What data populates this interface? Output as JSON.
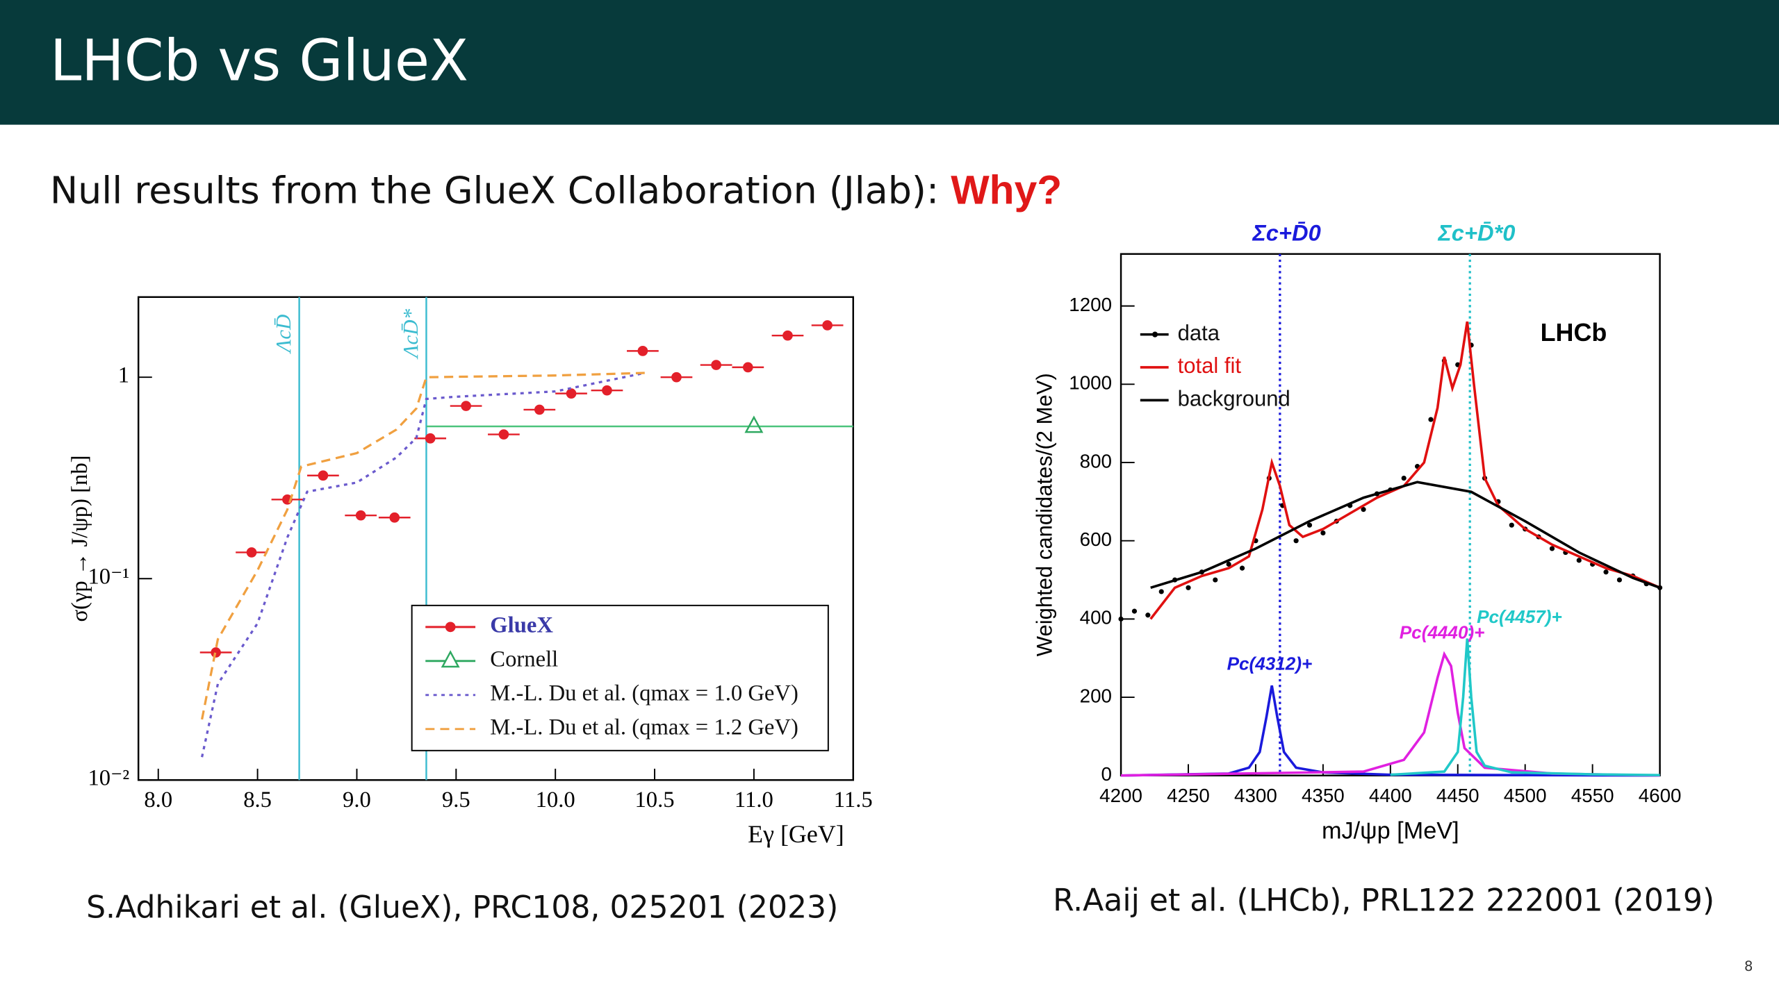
{
  "slide": {
    "title": "LHCb vs GlueX",
    "subtitle": "Null results from the GlueX Collaboration (Jlab): ",
    "subtitle_emphasis": "Why?",
    "caption_left": "S.Adhikari et al. (GlueX), PRC108, 025201 (2023)",
    "caption_right": "R.Aaij et al. (LHCb), PRL122 222001 (2019)",
    "page_number": "8"
  },
  "chart_data": [
    {
      "type": "scatter",
      "x_label": "Eγ [GeV]",
      "y_label": "σ(γp → J/ψp) [nb]",
      "ylog": true,
      "xlim": [
        7.9,
        11.5
      ],
      "ylim": [
        0.01,
        2.5
      ],
      "xticks": [
        {
          "value": 8,
          "label": "8.0"
        },
        8.5,
        {
          "value": 9,
          "label": "9.0"
        },
        9.5,
        {
          "value": 10,
          "label": "10.0"
        },
        10.5,
        {
          "value": 11,
          "label": "11.0"
        },
        11.5
      ],
      "yticks": [
        {
          "value": 0.01,
          "label": "10⁻²"
        },
        {
          "value": 0.1,
          "label": "10⁻¹"
        },
        1
      ],
      "legend": "lower right",
      "reference_lines": [
        {
          "axis": "x",
          "value": 8.71,
          "label": "ΛcD̄",
          "color": "#3cbcd0"
        },
        {
          "axis": "x",
          "value": 9.35,
          "label": "ΛcD̄*",
          "color": "#3cbcd0"
        },
        {
          "axis": "y",
          "value": 0.57,
          "from": 9.35,
          "color": "#4cc47c"
        }
      ],
      "series": [
        {
          "name": "GlueX",
          "color": "#e3202a",
          "style": "points",
          "x": [
            8.29,
            8.47,
            8.65,
            8.83,
            9.02,
            9.19,
            9.37,
            9.55,
            9.74,
            9.92,
            10.08,
            10.26,
            10.44,
            10.61,
            10.81,
            10.97,
            11.17,
            11.37
          ],
          "values": [
            0.043,
            0.135,
            0.247,
            0.325,
            0.206,
            0.201,
            0.497,
            0.72,
            0.52,
            0.69,
            0.83,
            0.86,
            1.35,
            1.0,
            1.15,
            1.12,
            1.61,
            1.81
          ]
        },
        {
          "name": "Cornell",
          "color": "#2ea860",
          "style": "triangle",
          "x": [
            11.0
          ],
          "values": [
            0.57
          ]
        },
        {
          "name": "M.-L. Du et al. (qmax = 1.0 GeV)",
          "color": "#6a5acd",
          "style": "dotted",
          "x": [
            8.22,
            8.3,
            8.5,
            8.65,
            8.75,
            9.0,
            9.2,
            9.3,
            9.35,
            9.5,
            10.0,
            10.45
          ],
          "values": [
            0.013,
            0.03,
            0.06,
            0.16,
            0.27,
            0.3,
            0.4,
            0.5,
            0.78,
            0.8,
            0.85,
            1.05
          ]
        },
        {
          "name": "M.-L. Du et al. (qmax = 1.2 GeV)",
          "color": "#f0a040",
          "style": "dashed",
          "x": [
            8.22,
            8.3,
            8.5,
            8.65,
            8.72,
            9.0,
            9.2,
            9.3,
            9.35,
            10.0,
            10.45
          ],
          "values": [
            0.02,
            0.05,
            0.11,
            0.22,
            0.36,
            0.42,
            0.55,
            0.7,
            1.0,
            1.02,
            1.05
          ]
        }
      ]
    },
    {
      "type": "line",
      "x_label": "mJ/ψp [MeV]",
      "y_label": "Weighted candidates/(2 MeV)",
      "annotation": "LHCb",
      "xlim": [
        4200,
        4600
      ],
      "ylim": [
        0,
        1333
      ],
      "xticks": [
        4200,
        4250,
        4300,
        4350,
        4400,
        4450,
        4500,
        4550,
        4600
      ],
      "yticks": [
        0,
        200,
        400,
        600,
        800,
        1000,
        1200
      ],
      "legend": "upper left",
      "reference_lines": [
        {
          "axis": "x",
          "value": 4318,
          "label": "Σc+D̄0",
          "color": "#1a1adc"
        },
        {
          "axis": "x",
          "value": 4459,
          "label": "Σc+D̄*0",
          "color": "#20c0c8"
        }
      ],
      "series": [
        {
          "name": "data",
          "color": "#000000",
          "style": "points",
          "in_legend": true,
          "x": [
            4200,
            4210,
            4220,
            4230,
            4240,
            4250,
            4260,
            4270,
            4280,
            4290,
            4300,
            4310,
            4320,
            4330,
            4340,
            4350,
            4360,
            4370,
            4380,
            4390,
            4400,
            4410,
            4420,
            4430,
            4440,
            4450,
            4460,
            4470,
            4480,
            4490,
            4500,
            4510,
            4520,
            4530,
            4540,
            4550,
            4560,
            4570,
            4580,
            4590,
            4600
          ],
          "values": [
            400,
            420,
            410,
            470,
            500,
            480,
            520,
            500,
            540,
            530,
            600,
            760,
            690,
            600,
            640,
            620,
            650,
            690,
            680,
            720,
            730,
            760,
            790,
            910,
            1060,
            1050,
            1100,
            760,
            700,
            640,
            630,
            610,
            580,
            570,
            550,
            540,
            520,
            500,
            510,
            490,
            480
          ]
        },
        {
          "name": "total fit",
          "color": "#e01010",
          "style": "line",
          "in_legend": true,
          "x": [
            4222,
            4240,
            4260,
            4280,
            4295,
            4305,
            4312,
            4318,
            4325,
            4335,
            4350,
            4370,
            4390,
            4410,
            4425,
            4435,
            4440,
            4446,
            4452,
            4457,
            4462,
            4470,
            4480,
            4500,
            4520,
            4540,
            4560,
            4580,
            4600
          ],
          "values": [
            400,
            480,
            510,
            530,
            560,
            680,
            800,
            740,
            640,
            610,
            630,
            670,
            710,
            740,
            800,
            940,
            1070,
            990,
            1050,
            1160,
            1000,
            760,
            690,
            630,
            590,
            560,
            530,
            510,
            480
          ]
        },
        {
          "name": "background",
          "color": "#000000",
          "style": "line",
          "in_legend": true,
          "x": [
            4222,
            4260,
            4300,
            4340,
            4380,
            4420,
            4460,
            4500,
            4540,
            4580,
            4600
          ],
          "values": [
            480,
            520,
            580,
            650,
            710,
            750,
            725,
            650,
            570,
            505,
            480
          ]
        },
        {
          "name": "Pc(4312)+",
          "color": "#1a1adc",
          "style": "line",
          "in_legend": false,
          "x": [
            4200,
            4280,
            4295,
            4303,
            4308,
            4312,
            4316,
            4321,
            4330,
            4350,
            4400,
            4600
          ],
          "values": [
            0,
            5,
            20,
            60,
            150,
            230,
            150,
            60,
            20,
            8,
            2,
            0
          ]
        },
        {
          "name": "Pc(4440)+",
          "color": "#e020e0",
          "style": "line",
          "in_legend": false,
          "x": [
            4200,
            4380,
            4410,
            4425,
            4435,
            4440,
            4445,
            4450,
            4455,
            4470,
            4520,
            4600
          ],
          "values": [
            0,
            10,
            40,
            110,
            250,
            310,
            280,
            160,
            70,
            20,
            5,
            0
          ]
        },
        {
          "name": "Pc(4457)+",
          "color": "#20c8c8",
          "style": "line",
          "in_legend": false,
          "x": [
            4400,
            4440,
            4450,
            4454,
            4457,
            4460,
            4464,
            4470,
            4490,
            4550,
            4600
          ],
          "values": [
            2,
            10,
            60,
            200,
            350,
            200,
            60,
            25,
            8,
            3,
            1
          ]
        }
      ]
    }
  ]
}
